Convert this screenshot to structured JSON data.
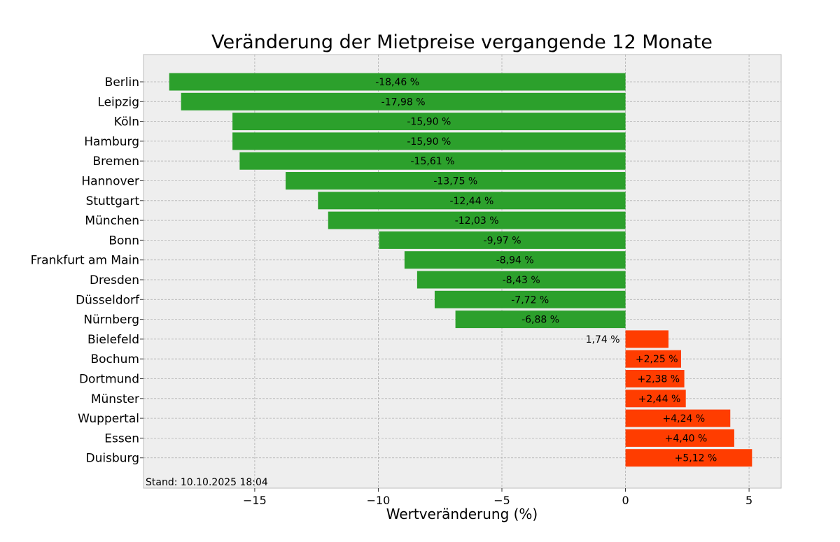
{
  "chart_data": {
    "type": "bar",
    "orientation": "horizontal",
    "title": "Veränderung der Mietpreise vergangende 12 Monate",
    "xlabel": "Wertveränderung (%)",
    "ylabel": "",
    "xlim": [
      -19.5,
      6.3
    ],
    "xticks": [
      -15,
      -10,
      -5,
      0,
      5
    ],
    "xtick_labels": [
      "−15",
      "−10",
      "−5",
      "0",
      "5"
    ],
    "grid": true,
    "colors": {
      "negative": "#2ca02c",
      "positive": "#ff3d00",
      "plot_bg": "#eeeeee",
      "grid": "#b0b0b0"
    },
    "categories": [
      "Berlin",
      "Leipzig",
      "Köln",
      "Hamburg",
      "Bremen",
      "Hannover",
      "Stuttgart",
      "München",
      "Bonn",
      "Frankfurt am Main",
      "Dresden",
      "Düsseldorf",
      "Nürnberg",
      "Bielefeld",
      "Bochum",
      "Dortmund",
      "Münster",
      "Wuppertal",
      "Essen",
      "Duisburg"
    ],
    "values": [
      -18.46,
      -17.98,
      -15.9,
      -15.9,
      -15.61,
      -13.75,
      -12.44,
      -12.03,
      -9.97,
      -8.94,
      -8.43,
      -7.72,
      -6.88,
      1.74,
      2.25,
      2.38,
      2.44,
      4.24,
      4.4,
      5.12
    ],
    "value_labels": [
      "-18,46 %",
      "-17,98 %",
      "-15,90 %",
      "-15,90 %",
      "-15,61 %",
      "-13,75 %",
      "-12,44 %",
      "-12,03 %",
      "-9,97 %",
      "-8,94 %",
      "-8,43 %",
      "-7,72 %",
      "-6,88 %",
      "1,74 %",
      "+2,25 %",
      "+2,38 %",
      "+2,44 %",
      "+4,24 %",
      "+4,40 %",
      "+5,12 %"
    ],
    "annotation": "Stand: 10.10.2025 18:04"
  }
}
